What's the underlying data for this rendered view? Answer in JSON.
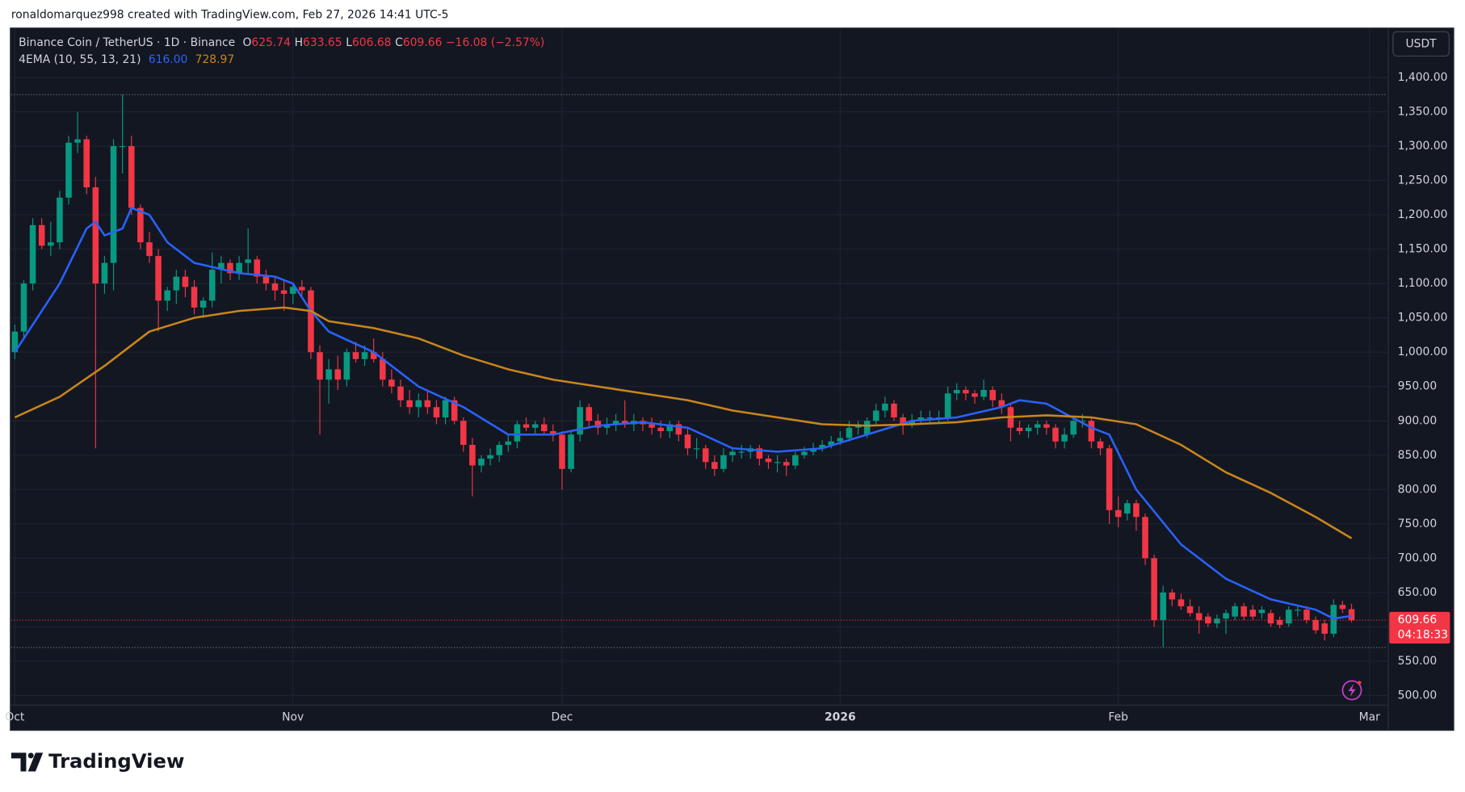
{
  "attribution": "ronaldomarquez998 created with TradingView.com, Feb 27, 2026 14:41 UTC-5",
  "chart_data": {
    "type": "candlestick",
    "title": "Binance Coin / TetherUS · 1D · Binance",
    "ohlc_labels": [
      "O",
      "H",
      "L",
      "C"
    ],
    "change": "−16.08 (−2.57%)",
    "currency": "USDT",
    "countdown": "04:18:33",
    "indicator": "4EMA (10, 55, 13, 21)",
    "up_color": "#089981",
    "down_color": "#f23645",
    "open": [
      1000,
      1030,
      1100,
      1185,
      1155,
      1160,
      1225,
      1305,
      1310,
      1240,
      1100,
      1130,
      1300,
      1300,
      1210,
      1160,
      1140,
      1075,
      1090,
      1110,
      1095,
      1065,
      1075,
      1120,
      1130,
      1115,
      1130,
      1135,
      1110,
      1100,
      1090,
      1085,
      1095,
      1090,
      1000,
      960,
      975,
      960,
      1000,
      990,
      1000,
      990,
      960,
      950,
      930,
      920,
      930,
      920,
      905,
      930,
      900,
      865,
      835,
      845,
      850,
      865,
      870,
      895,
      890,
      895,
      885,
      880,
      830,
      880,
      920,
      900,
      890,
      895,
      900,
      895,
      900,
      895,
      890,
      885,
      895,
      880,
      860,
      860,
      840,
      830,
      850,
      855,
      855,
      860,
      845,
      840,
      840,
      835,
      850,
      855,
      860,
      865,
      870,
      875,
      890,
      880,
      900,
      915,
      925,
      905,
      895,
      900,
      905,
      905,
      905,
      940,
      945,
      940,
      935,
      945,
      930,
      920,
      890,
      885,
      890,
      895,
      890,
      870,
      880,
      900,
      900,
      870,
      860,
      770,
      765,
      780,
      760,
      700,
      610,
      650,
      640,
      630,
      620,
      615,
      605,
      612,
      615,
      630,
      625,
      620,
      620,
      610,
      605,
      625,
      625,
      610,
      605,
      590,
      632,
      625.74
    ],
    "high": [
      1040,
      1105,
      1195,
      1195,
      1190,
      1235,
      1315,
      1350,
      1315,
      1255,
      1140,
      1310,
      1375,
      1315,
      1215,
      1175,
      1150,
      1095,
      1120,
      1120,
      1105,
      1080,
      1145,
      1140,
      1135,
      1140,
      1180,
      1140,
      1120,
      1110,
      1105,
      1100,
      1105,
      1095,
      1010,
      990,
      995,
      1005,
      1015,
      1010,
      1020,
      1000,
      975,
      960,
      945,
      940,
      945,
      930,
      935,
      935,
      905,
      875,
      850,
      860,
      870,
      880,
      900,
      905,
      900,
      905,
      895,
      885,
      885,
      930,
      925,
      910,
      905,
      910,
      930,
      910,
      905,
      905,
      900,
      900,
      900,
      890,
      875,
      865,
      850,
      860,
      860,
      865,
      865,
      865,
      850,
      850,
      845,
      855,
      862,
      868,
      872,
      878,
      885,
      900,
      900,
      905,
      925,
      935,
      930,
      910,
      910,
      915,
      915,
      915,
      950,
      955,
      950,
      945,
      960,
      950,
      940,
      925,
      900,
      895,
      900,
      900,
      895,
      890,
      905,
      910,
      905,
      875,
      865,
      790,
      785,
      785,
      765,
      705,
      660,
      655,
      648,
      640,
      630,
      620,
      618,
      625,
      635,
      635,
      632,
      630,
      625,
      615,
      630,
      632,
      630,
      615,
      610,
      640,
      638,
      633.65
    ],
    "low": [
      990,
      1020,
      1090,
      1150,
      1140,
      1150,
      1215,
      1290,
      1230,
      860,
      1085,
      1090,
      1260,
      1200,
      1150,
      1130,
      1030,
      1060,
      1070,
      1080,
      1055,
      1050,
      1065,
      1100,
      1105,
      1105,
      1115,
      1100,
      1090,
      1075,
      1060,
      1070,
      1080,
      990,
      880,
      925,
      945,
      950,
      985,
      980,
      985,
      950,
      940,
      920,
      910,
      905,
      910,
      895,
      895,
      895,
      855,
      790,
      825,
      835,
      840,
      855,
      860,
      885,
      880,
      880,
      870,
      800,
      825,
      870,
      890,
      880,
      880,
      885,
      890,
      885,
      885,
      880,
      875,
      875,
      870,
      850,
      845,
      830,
      820,
      825,
      840,
      845,
      845,
      835,
      830,
      825,
      820,
      830,
      845,
      850,
      855,
      860,
      865,
      870,
      880,
      875,
      895,
      905,
      900,
      880,
      890,
      895,
      895,
      895,
      900,
      930,
      930,
      925,
      930,
      920,
      910,
      870,
      880,
      875,
      880,
      880,
      860,
      860,
      875,
      890,
      860,
      850,
      750,
      745,
      755,
      740,
      690,
      600,
      570,
      630,
      625,
      615,
      590,
      600,
      598,
      590,
      610,
      610,
      610,
      612,
      600,
      598,
      600,
      615,
      605,
      590,
      580,
      585,
      620,
      606.68
    ],
    "close": [
      1030,
      1100,
      1185,
      1155,
      1160,
      1225,
      1305,
      1310,
      1240,
      1100,
      1130,
      1300,
      1300,
      1210,
      1160,
      1140,
      1075,
      1090,
      1110,
      1095,
      1065,
      1075,
      1120,
      1130,
      1115,
      1130,
      1135,
      1110,
      1100,
      1090,
      1085,
      1095,
      1090,
      1000,
      960,
      975,
      960,
      1000,
      990,
      1000,
      990,
      960,
      950,
      930,
      920,
      930,
      920,
      905,
      930,
      900,
      865,
      835,
      845,
      850,
      865,
      870,
      895,
      890,
      895,
      885,
      880,
      830,
      880,
      920,
      900,
      890,
      895,
      900,
      895,
      900,
      895,
      890,
      885,
      895,
      880,
      860,
      860,
      840,
      830,
      850,
      855,
      855,
      860,
      845,
      840,
      840,
      835,
      850,
      855,
      860,
      865,
      870,
      875,
      890,
      895,
      900,
      915,
      925,
      905,
      895,
      900,
      905,
      905,
      905,
      940,
      945,
      940,
      935,
      945,
      930,
      920,
      890,
      885,
      890,
      895,
      890,
      870,
      880,
      900,
      900,
      870,
      860,
      770,
      760,
      780,
      760,
      700,
      610,
      650,
      640,
      630,
      620,
      610,
      605,
      612,
      620,
      630,
      615,
      615,
      625,
      605,
      603,
      625,
      625,
      610,
      595,
      590,
      632,
      626,
      609.66
    ],
    "series": [
      {
        "color": "#2962ff",
        "label": "616.00",
        "x": [
          0,
          5,
          8,
          9,
          10,
          12,
          13,
          15,
          17,
          20,
          25,
          29,
          31,
          33,
          35,
          40,
          45,
          50,
          55,
          60,
          65,
          70,
          75,
          80,
          85,
          90,
          95,
          100,
          105,
          110,
          112,
          115,
          120,
          122,
          125,
          130,
          135,
          140,
          145,
          147,
          149
        ],
        "values": [
          1000,
          1100,
          1180,
          1190,
          1170,
          1180,
          1210,
          1200,
          1160,
          1130,
          1115,
          1110,
          1100,
          1060,
          1030,
          1000,
          950,
          920,
          880,
          880,
          893,
          898,
          890,
          860,
          855,
          860,
          880,
          900,
          905,
          920,
          930,
          925,
          890,
          880,
          800,
          720,
          670,
          640,
          625,
          612,
          616
        ]
      },
      {
        "color": "#c9861a",
        "label": "728.97",
        "x": [
          0,
          5,
          10,
          12,
          15,
          20,
          25,
          30,
          33,
          35,
          40,
          45,
          50,
          55,
          60,
          65,
          70,
          75,
          80,
          85,
          90,
          95,
          100,
          105,
          110,
          115,
          120,
          125,
          130,
          135,
          140,
          145,
          149
        ],
        "values": [
          905,
          935,
          980,
          1000,
          1030,
          1050,
          1060,
          1065,
          1060,
          1045,
          1035,
          1020,
          995,
          975,
          960,
          950,
          940,
          930,
          915,
          905,
          895,
          893,
          895,
          898,
          905,
          908,
          905,
          895,
          865,
          825,
          795,
          760,
          728.97
        ]
      }
    ],
    "xlim": [
      -0.4,
      153
    ],
    "xticks": [
      {
        "value": 0,
        "label": "Oct"
      },
      {
        "value": 31,
        "label": "Nov"
      },
      {
        "value": 61,
        "label": "Dec"
      },
      {
        "value": 92,
        "label": "2026"
      },
      {
        "value": 123,
        "label": "Feb"
      },
      {
        "value": 151,
        "label": "Mar"
      }
    ],
    "ylim": [
      486,
      1472
    ],
    "yticks": [
      {
        "value": 500,
        "label": "500.00"
      },
      {
        "value": 550,
        "label": "550.00"
      },
      {
        "value": 600,
        "label": "600.00"
      },
      {
        "value": 650,
        "label": "650.00"
      },
      {
        "value": 700,
        "label": "700.00"
      },
      {
        "value": 750,
        "label": "750.00"
      },
      {
        "value": 800,
        "label": "800.00"
      },
      {
        "value": 850,
        "label": "850.00"
      },
      {
        "value": 900,
        "label": "900.00"
      },
      {
        "value": 950,
        "label": "950.00"
      },
      {
        "value": 1000,
        "label": "1,000.00"
      },
      {
        "value": 1050,
        "label": "1,050.00"
      },
      {
        "value": 1100,
        "label": "1,100.00"
      },
      {
        "value": 1150,
        "label": "1,150.00"
      },
      {
        "value": 1200,
        "label": "1,200.00"
      },
      {
        "value": 1250,
        "label": "1,250.00"
      },
      {
        "value": 1300,
        "label": "1,300.00"
      },
      {
        "value": 1350,
        "label": "1,350.00"
      },
      {
        "value": 1400,
        "label": "1,400.00"
      }
    ],
    "grid": true
  },
  "footer": {
    "logo": "TradingView"
  }
}
